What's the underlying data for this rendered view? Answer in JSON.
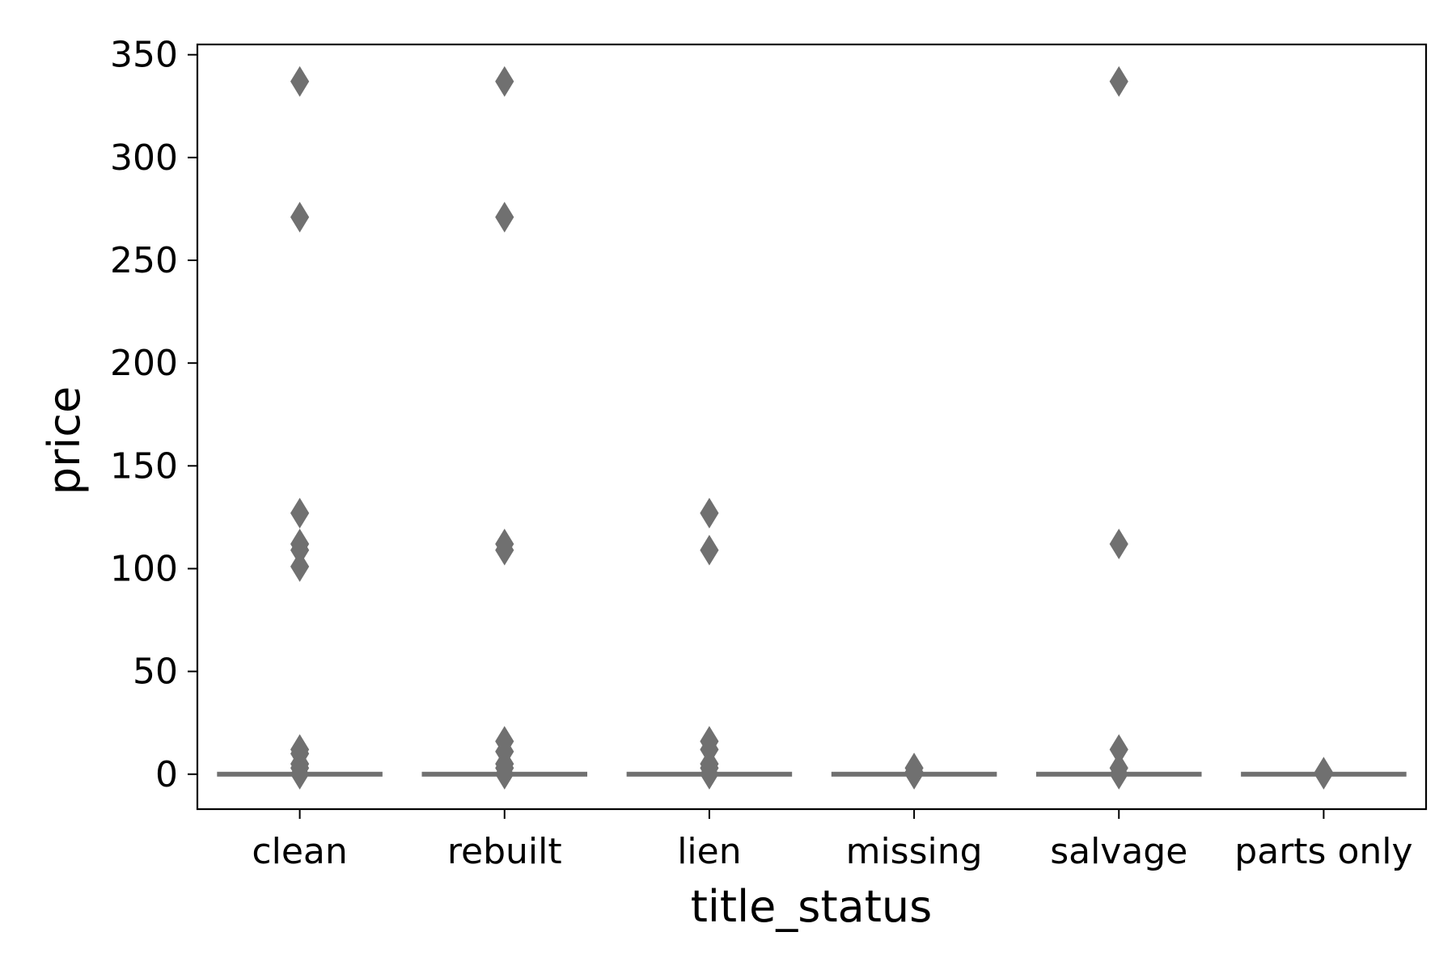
{
  "chart_data": {
    "type": "box",
    "xlabel": "title_status",
    "ylabel": "price",
    "categories": [
      "clean",
      "rebuilt",
      "lien",
      "missing",
      "salvage",
      "parts only"
    ],
    "ylim": [
      -17,
      355
    ],
    "yticks": [
      0,
      50,
      100,
      150,
      200,
      250,
      300,
      350
    ],
    "grid": false,
    "colors": {
      "box": "#707070",
      "outlier": "#707070",
      "axis": "#000000"
    },
    "boxes": [
      {
        "category": "clean",
        "q1": 0,
        "median": 0,
        "q3": 0,
        "whisker_low": 0,
        "whisker_high": 0,
        "outliers": [
          337,
          271,
          127,
          112,
          109,
          101,
          12,
          10,
          5,
          3,
          0
        ]
      },
      {
        "category": "rebuilt",
        "q1": 0,
        "median": 0,
        "q3": 0,
        "whisker_low": 0,
        "whisker_high": 0,
        "outliers": [
          337,
          271,
          112,
          109,
          16,
          11,
          5,
          3,
          0
        ]
      },
      {
        "category": "lien",
        "q1": 0,
        "median": 0,
        "q3": 0,
        "whisker_low": 0,
        "whisker_high": 0,
        "outliers": [
          127,
          109,
          16,
          12,
          5,
          3,
          0
        ]
      },
      {
        "category": "missing",
        "q1": 0,
        "median": 0,
        "q3": 0,
        "whisker_low": 0,
        "whisker_high": 0,
        "outliers": [
          3,
          1,
          0
        ]
      },
      {
        "category": "salvage",
        "q1": 0,
        "median": 0,
        "q3": 0,
        "whisker_low": 0,
        "whisker_high": 0,
        "outliers": [
          337,
          112,
          12,
          3,
          0
        ]
      },
      {
        "category": "parts only",
        "q1": 0,
        "median": 0,
        "q3": 0,
        "whisker_low": 0,
        "whisker_high": 0,
        "outliers": [
          1,
          0
        ]
      }
    ]
  }
}
